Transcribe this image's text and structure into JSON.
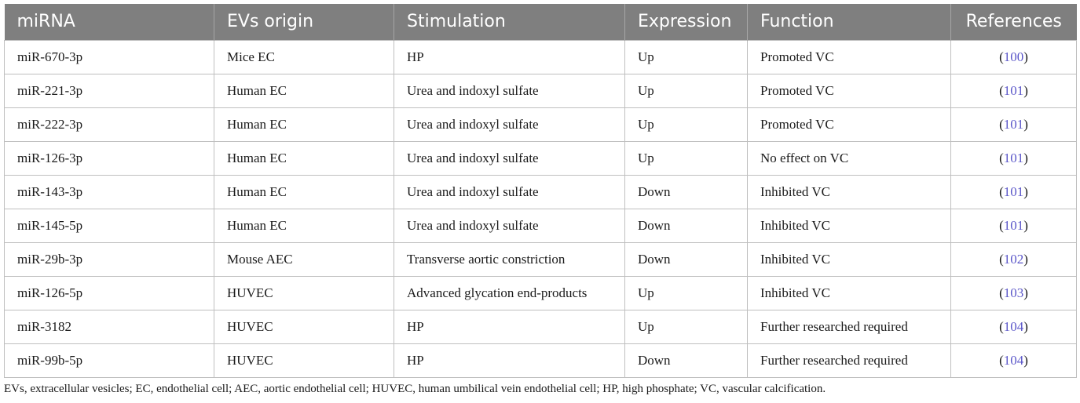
{
  "headers": [
    "miRNA",
    "EVs origin",
    "Stimulation",
    "Expression",
    "Function",
    "References"
  ],
  "rows": [
    {
      "mirna": "miR-670-3p",
      "origin": "Mice EC",
      "stimulation": "HP",
      "expression": "Up",
      "function": "Promoted VC",
      "ref": "100"
    },
    {
      "mirna": "miR-221-3p",
      "origin": "Human EC",
      "stimulation": "Urea and indoxyl sulfate",
      "expression": "Up",
      "function": "Promoted VC",
      "ref": "101"
    },
    {
      "mirna": "miR-222-3p",
      "origin": "Human EC",
      "stimulation": "Urea and indoxyl sulfate",
      "expression": "Up",
      "function": "Promoted VC",
      "ref": "101"
    },
    {
      "mirna": "miR-126-3p",
      "origin": "Human EC",
      "stimulation": "Urea and indoxyl sulfate",
      "expression": "Up",
      "function": "No effect on VC",
      "ref": "101"
    },
    {
      "mirna": "miR-143-3p",
      "origin": "Human EC",
      "stimulation": "Urea and indoxyl sulfate",
      "expression": "Down",
      "function": "Inhibited VC",
      "ref": "101"
    },
    {
      "mirna": "miR-145-5p",
      "origin": "Human EC",
      "stimulation": "Urea and indoxyl sulfate",
      "expression": "Down",
      "function": "Inhibited VC",
      "ref": "101"
    },
    {
      "mirna": "miR-29b-3p",
      "origin": "Mouse AEC",
      "stimulation": "Transverse aortic constriction",
      "expression": "Down",
      "function": "Inhibited VC",
      "ref": "102"
    },
    {
      "mirna": "miR-126-5p",
      "origin": "HUVEC",
      "stimulation": "Advanced glycation end-products",
      "expression": "Up",
      "function": "Inhibited VC",
      "ref": "103"
    },
    {
      "mirna": "miR-3182",
      "origin": "HUVEC",
      "stimulation": "HP",
      "expression": "Up",
      "function": "Further researched required",
      "ref": "104"
    },
    {
      "mirna": "miR-99b-5p",
      "origin": "HUVEC",
      "stimulation": "HP",
      "expression": "Down",
      "function": "Further researched required",
      "ref": "104"
    }
  ],
  "footnote": "EVs, extracellular vesicles; EC, endothelial cell; AEC, aortic endothelial cell; HUVEC, human umbilical vein endothelial cell; HP, high phosphate; VC, vascular calcification.",
  "colors": {
    "header_bg": "#7f7f7f",
    "link": "#5b57c9"
  }
}
